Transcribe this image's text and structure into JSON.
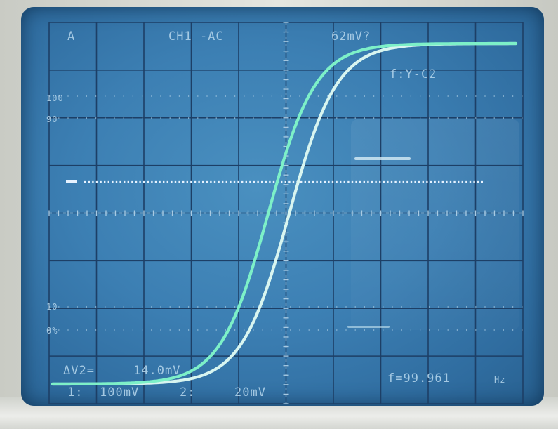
{
  "top": {
    "trig_mode": "A",
    "channel": "CH1 -AC",
    "measure": "62mV?"
  },
  "mode_label": "f:Y-C2",
  "scale_labels": {
    "p100": "100",
    "p90": "90",
    "p10": "10",
    "p0": "0%"
  },
  "bottom": {
    "delta_label": "ΔV2=",
    "delta_value": "14.0mV",
    "ch1_prefix": "1:",
    "ch1_value": "100mV",
    "ch2_prefix": "2:",
    "ch2_value": "20mV",
    "freq": "f=99.961",
    "freq_unit": "Hz"
  },
  "colors": {
    "trace_a": "#7df0c8",
    "trace_b": "#d8f5f0",
    "grid": "#1d3f66",
    "grid_dots": "#a9cbe3",
    "cursor_dots": "#e6f2ff"
  }
}
